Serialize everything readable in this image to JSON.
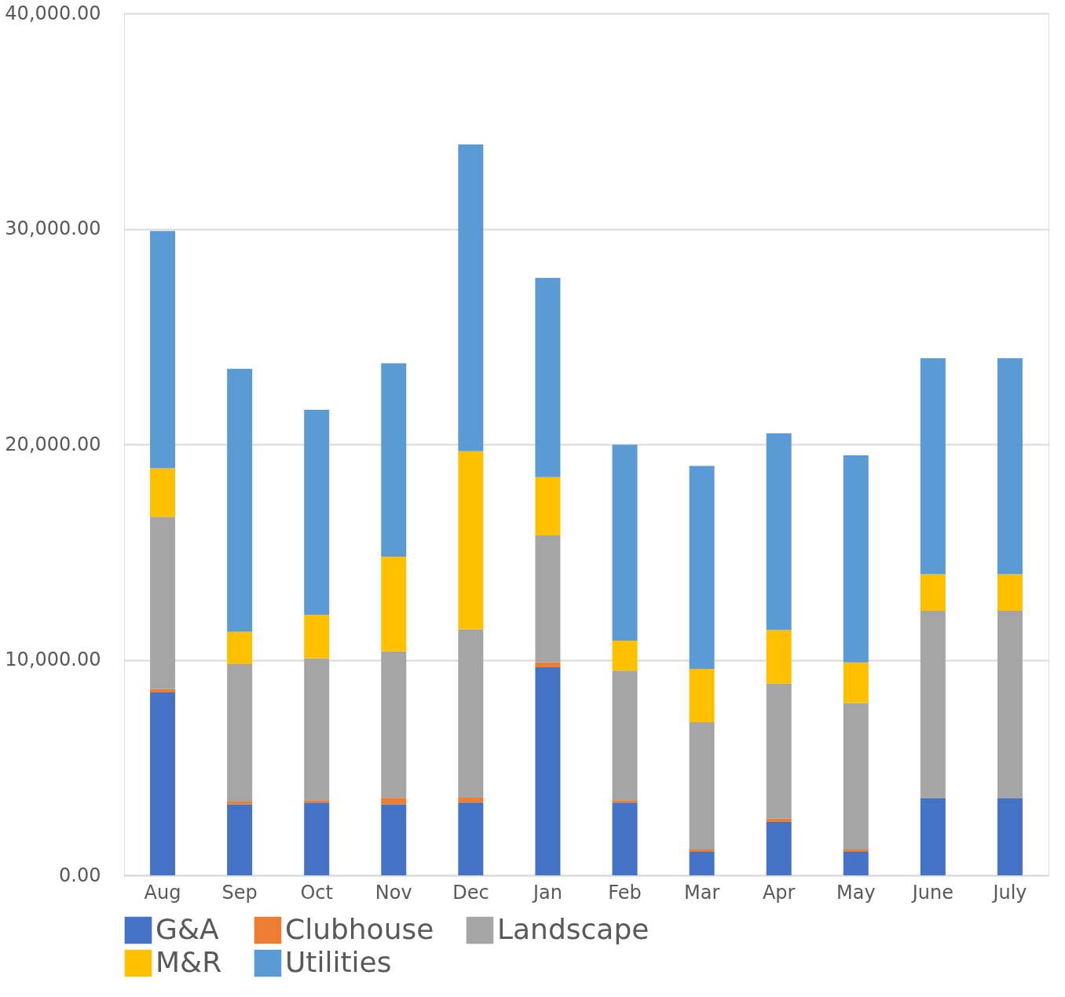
{
  "chart_data": {
    "type": "bar",
    "stacked": true,
    "categories": [
      "Aug",
      "Sep",
      "Oct",
      "Nov",
      "Dec",
      "Jan",
      "Feb",
      "Mar",
      "Apr",
      "May",
      "June",
      "July"
    ],
    "series": [
      {
        "name": "G&A",
        "color": "#4472c4",
        "values": [
          8490,
          3300,
          3380,
          3300,
          3380,
          9650,
          3380,
          1090,
          2480,
          1090,
          3570,
          3570
        ]
      },
      {
        "name": "Clubhouse",
        "color": "#ed7d31",
        "values": [
          150,
          120,
          110,
          300,
          230,
          230,
          110,
          110,
          150,
          110,
          0,
          0
        ]
      },
      {
        "name": "Landscape",
        "color": "#a5a5a5",
        "values": [
          8000,
          6380,
          6580,
          6790,
          7810,
          5890,
          6010,
          5900,
          6270,
          6800,
          8710,
          8710
        ]
      },
      {
        "name": "M&R",
        "color": "#ffc000",
        "values": [
          2250,
          1500,
          2020,
          4400,
          8260,
          2710,
          1390,
          2480,
          2480,
          1880,
          1690,
          1690
        ]
      },
      {
        "name": "Utilities",
        "color": "#5b9bd5",
        "values": [
          11010,
          12210,
          9510,
          8970,
          14240,
          9240,
          9090,
          9420,
          9130,
          9610,
          10030,
          10030
        ]
      }
    ],
    "ylim": [
      0,
      40000
    ],
    "yticks": [
      {
        "value": 0,
        "label": "0.00"
      },
      {
        "value": 10000,
        "label": "10,000.00"
      },
      {
        "value": 20000,
        "label": "20,000.00"
      },
      {
        "value": 30000,
        "label": "30,000.00"
      },
      {
        "value": 40000,
        "label": "40,000.00"
      }
    ],
    "grid": "y",
    "legend": "bottom"
  }
}
